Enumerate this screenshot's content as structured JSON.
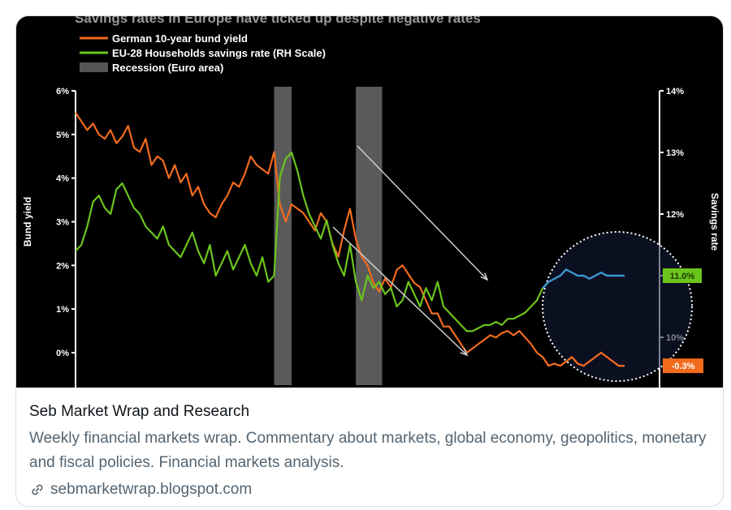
{
  "card": {
    "title": "Seb Market Wrap and Research",
    "description": "Weekly financial markets wrap. Commentary about markets, global economy, geopolitics, monetary and fiscal policies. Financial markets analysis.",
    "link": "sebmarketwrap.blogspot.com",
    "link_icon": "link-icon"
  },
  "chart_data": {
    "type": "line",
    "title": "Savings rates in Europe have ticked up despite negative rates",
    "legend": [
      {
        "label": "German 10-year bund yield",
        "color": "#f26b1d"
      },
      {
        "label": "EU-28 Households savings rate (RH Scale)",
        "color": "#6cc51c"
      },
      {
        "label": "Recession (Euro area)",
        "color": "#555555"
      }
    ],
    "ylabel_left": "Bund yield",
    "ylabel_right": "Savings rate",
    "yticks_left": [
      "6%",
      "5%",
      "4%",
      "3%",
      "2%",
      "1%",
      "0%"
    ],
    "yticks_right": [
      "14%",
      "13%",
      "12%",
      "11%",
      "10%"
    ],
    "ylim_left": [
      0,
      6
    ],
    "ylim_right": [
      9.75,
      14
    ],
    "callouts": {
      "savings_last": "11.0%",
      "bund_last": "-0.3%"
    },
    "recessions": [
      [
        0.34,
        0.37
      ],
      [
        0.48,
        0.525
      ]
    ],
    "series": [
      {
        "name": "German 10-year bund yield",
        "axis": "left",
        "color": "#f26b1d",
        "x": [
          0,
          0.01,
          0.02,
          0.03,
          0.04,
          0.05,
          0.06,
          0.07,
          0.08,
          0.09,
          0.1,
          0.11,
          0.12,
          0.13,
          0.14,
          0.15,
          0.16,
          0.17,
          0.18,
          0.19,
          0.2,
          0.21,
          0.22,
          0.23,
          0.24,
          0.25,
          0.26,
          0.27,
          0.28,
          0.29,
          0.3,
          0.31,
          0.32,
          0.33,
          0.34,
          0.35,
          0.36,
          0.37,
          0.38,
          0.39,
          0.4,
          0.41,
          0.42,
          0.43,
          0.44,
          0.45,
          0.46,
          0.47,
          0.48,
          0.49,
          0.5,
          0.51,
          0.52,
          0.53,
          0.54,
          0.55,
          0.56,
          0.57,
          0.58,
          0.59,
          0.6,
          0.61,
          0.62,
          0.63,
          0.64,
          0.65,
          0.66,
          0.67,
          0.68,
          0.69,
          0.7,
          0.71,
          0.72,
          0.73,
          0.74,
          0.75,
          0.76,
          0.77,
          0.78,
          0.79,
          0.8,
          0.81,
          0.82,
          0.83,
          0.84,
          0.85,
          0.86,
          0.87,
          0.88,
          0.89,
          0.9,
          0.91,
          0.92,
          0.93,
          0.94
        ],
        "values": [
          5.5,
          5.3,
          5.1,
          5.25,
          5.0,
          4.9,
          5.1,
          4.8,
          4.95,
          5.2,
          4.7,
          4.6,
          4.9,
          4.3,
          4.5,
          4.4,
          4.0,
          4.3,
          3.9,
          4.1,
          3.6,
          3.8,
          3.4,
          3.2,
          3.1,
          3.4,
          3.6,
          3.9,
          3.8,
          4.1,
          4.5,
          4.3,
          4.2,
          4.1,
          4.6,
          3.4,
          3.0,
          3.4,
          3.3,
          3.2,
          3.0,
          2.8,
          3.2,
          3.0,
          2.5,
          2.2,
          2.8,
          3.3,
          2.6,
          2.2,
          2.0,
          1.6,
          1.4,
          1.7,
          1.5,
          1.9,
          2.0,
          1.8,
          1.6,
          1.5,
          1.2,
          0.9,
          0.9,
          0.6,
          0.6,
          0.4,
          0.2,
          0.0,
          0.1,
          0.2,
          0.3,
          0.4,
          0.35,
          0.45,
          0.5,
          0.4,
          0.5,
          0.35,
          0.2,
          0.0,
          -0.1,
          -0.3,
          -0.25,
          -0.3,
          -0.2,
          -0.1,
          -0.25,
          -0.3,
          -0.2,
          -0.1,
          0.0,
          -0.1,
          -0.2,
          -0.3,
          -0.3
        ]
      },
      {
        "name": "EU-28 Households savings rate (RH Scale)",
        "axis": "right",
        "color": "#6cc51c",
        "x": [
          0,
          0.01,
          0.02,
          0.03,
          0.04,
          0.05,
          0.06,
          0.07,
          0.08,
          0.09,
          0.1,
          0.11,
          0.12,
          0.13,
          0.14,
          0.15,
          0.16,
          0.17,
          0.18,
          0.19,
          0.2,
          0.21,
          0.22,
          0.23,
          0.24,
          0.25,
          0.26,
          0.27,
          0.28,
          0.29,
          0.3,
          0.31,
          0.32,
          0.33,
          0.34,
          0.35,
          0.36,
          0.37,
          0.38,
          0.39,
          0.4,
          0.41,
          0.42,
          0.43,
          0.44,
          0.45,
          0.46,
          0.47,
          0.48,
          0.49,
          0.5,
          0.51,
          0.52,
          0.53,
          0.54,
          0.55,
          0.56,
          0.57,
          0.58,
          0.59,
          0.6,
          0.61,
          0.62,
          0.63,
          0.64,
          0.65,
          0.66,
          0.67,
          0.68,
          0.69,
          0.7,
          0.71,
          0.72,
          0.73,
          0.74,
          0.75,
          0.76,
          0.77,
          0.78,
          0.79,
          0.8,
          0.81,
          0.82,
          0.83,
          0.84,
          0.85,
          0.86,
          0.87,
          0.88,
          0.89,
          0.9,
          0.91,
          0.92,
          0.93,
          0.94
        ],
        "values": [
          11.4,
          11.5,
          11.8,
          12.2,
          12.3,
          12.1,
          12.0,
          12.4,
          12.5,
          12.3,
          12.1,
          12.0,
          11.8,
          11.7,
          11.6,
          11.8,
          11.5,
          11.4,
          11.3,
          11.5,
          11.7,
          11.4,
          11.2,
          11.5,
          11.0,
          11.2,
          11.4,
          11.1,
          11.3,
          11.5,
          11.2,
          11.0,
          11.3,
          10.9,
          11.0,
          12.6,
          12.9,
          13.0,
          12.7,
          12.3,
          12.0,
          11.8,
          11.6,
          11.9,
          11.5,
          11.2,
          11.0,
          11.5,
          10.9,
          10.6,
          11.0,
          10.8,
          10.9,
          10.7,
          10.8,
          10.5,
          10.6,
          10.9,
          10.7,
          10.5,
          10.8,
          10.6,
          10.9,
          10.5,
          10.4,
          10.3,
          10.2,
          10.1,
          10.1,
          10.15,
          10.2,
          10.2,
          10.25,
          10.2,
          10.3,
          10.3,
          10.35,
          10.4,
          10.5,
          10.6,
          10.8,
          10.9,
          10.95,
          11.0,
          11.1,
          11.05,
          11.0,
          11.0,
          10.95,
          11.0,
          11.05,
          11.0,
          11.0,
          11.0,
          11.0
        ]
      }
    ]
  }
}
